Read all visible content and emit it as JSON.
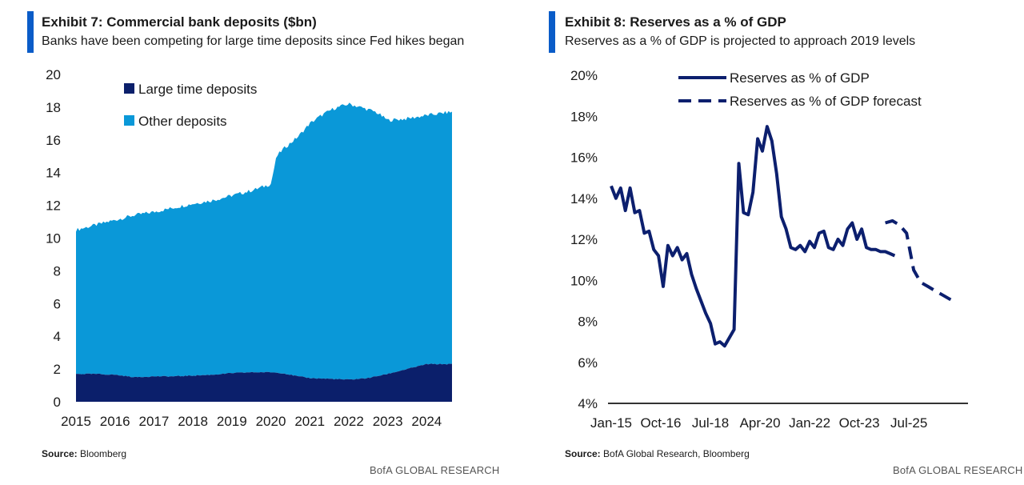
{
  "colors": {
    "accent": "#0a5cc8",
    "navy": "#0b1f6b",
    "light_blue": "#0a98d8",
    "line": "#0c1f6e"
  },
  "left": {
    "title": "Exhibit 7: Commercial bank deposits ($bn)",
    "subtitle": "Banks have been competing for large time deposits since Fed hikes began",
    "source_label": "Source:",
    "source_text": "Bloomberg",
    "brand": "BofA GLOBAL RESEARCH"
  },
  "right": {
    "title": "Exhibit 8: Reserves as a % of GDP",
    "subtitle": "Reserves as a % of GDP is projected to approach 2019 levels",
    "source_label": "Source:",
    "source_text": "BofA Global Research, Bloomberg",
    "brand": "BofA GLOBAL RESEARCH"
  },
  "chart_data": [
    {
      "type": "area",
      "stacked": true,
      "title": "Exhibit 7: Commercial bank deposits ($bn)",
      "ylim": [
        0,
        20
      ],
      "y_ticks": [
        "0",
        "2",
        "4",
        "6",
        "8",
        "10",
        "12",
        "14",
        "16",
        "18",
        "20"
      ],
      "x_ticks": [
        "2015",
        "2016",
        "2017",
        "2018",
        "2019",
        "2020",
        "2021",
        "2022",
        "2023",
        "2024"
      ],
      "legend_position": "top-left",
      "series": [
        {
          "name": "Large time deposits",
          "x": [
            2015.0,
            2015.5,
            2016.0,
            2016.5,
            2017.0,
            2017.5,
            2018.0,
            2018.5,
            2019.0,
            2019.5,
            2020.0,
            2020.3,
            2020.7,
            2021.0,
            2021.5,
            2022.0,
            2022.5,
            2023.0,
            2023.5,
            2024.0,
            2024.6
          ],
          "values": [
            1.7,
            1.7,
            1.65,
            1.5,
            1.55,
            1.55,
            1.6,
            1.65,
            1.75,
            1.8,
            1.8,
            1.75,
            1.55,
            1.45,
            1.4,
            1.35,
            1.45,
            1.7,
            2.0,
            2.3,
            2.3
          ]
        },
        {
          "name": "Other deposits",
          "x": [
            2015.0,
            2015.5,
            2016.0,
            2016.5,
            2017.0,
            2017.5,
            2018.0,
            2018.5,
            2019.0,
            2019.5,
            2020.0,
            2020.15,
            2020.3,
            2020.7,
            2021.0,
            2021.3,
            2021.6,
            2022.0,
            2022.3,
            2022.7,
            2023.0,
            2023.5,
            2024.0,
            2024.6
          ],
          "total": [
            10.5,
            10.8,
            11.1,
            11.4,
            11.6,
            11.85,
            12.1,
            12.3,
            12.6,
            12.9,
            13.3,
            15.0,
            15.4,
            16.2,
            17.0,
            17.5,
            17.9,
            18.2,
            18.0,
            17.7,
            17.2,
            17.3,
            17.5,
            17.7
          ]
        }
      ]
    },
    {
      "type": "line",
      "title": "Exhibit 8: Reserves as a % of GDP",
      "ylim": [
        4,
        20
      ],
      "y_ticks": [
        "4%",
        "6%",
        "8%",
        "10%",
        "12%",
        "14%",
        "16%",
        "18%",
        "20%"
      ],
      "x_ticks": [
        "Jan-15",
        "Oct-16",
        "Jul-18",
        "Apr-20",
        "Jan-22",
        "Oct-23",
        "Jul-25"
      ],
      "legend_position": "top",
      "series": [
        {
          "name": "Reserves as % of GDP",
          "style": "solid",
          "x": [
            "2015-01",
            "2015-03",
            "2015-05",
            "2015-07",
            "2015-09",
            "2015-11",
            "2016-01",
            "2016-03",
            "2016-05",
            "2016-07",
            "2016-09",
            "2016-11",
            "2017-01",
            "2017-03",
            "2017-05",
            "2017-07",
            "2017-09",
            "2017-11",
            "2018-01",
            "2018-03",
            "2018-05",
            "2018-07",
            "2018-09",
            "2018-11",
            "2019-01",
            "2019-03",
            "2019-05",
            "2019-07",
            "2019-09",
            "2019-11",
            "2020-01",
            "2020-03",
            "2020-05",
            "2020-07",
            "2020-09",
            "2020-11",
            "2021-01",
            "2021-03",
            "2021-05",
            "2021-07",
            "2021-09",
            "2021-11",
            "2022-01",
            "2022-03",
            "2022-05",
            "2022-07",
            "2022-09",
            "2022-11",
            "2023-01",
            "2023-03",
            "2023-05",
            "2023-07",
            "2023-09",
            "2023-11",
            "2024-01",
            "2024-03",
            "2024-05",
            "2024-07",
            "2024-09",
            "2024-11",
            "2025-01"
          ],
          "values": [
            14.6,
            14.0,
            14.5,
            13.4,
            14.5,
            13.3,
            13.4,
            12.3,
            12.4,
            11.5,
            11.2,
            9.7,
            11.7,
            11.2,
            11.6,
            11.0,
            11.3,
            10.3,
            9.6,
            9.0,
            8.4,
            7.9,
            6.9,
            7.0,
            6.8,
            7.2,
            7.6,
            15.7,
            13.3,
            13.2,
            14.3,
            16.9,
            16.3,
            17.5,
            16.8,
            15.2,
            13.1,
            12.5,
            11.6,
            11.5,
            11.7,
            11.4,
            11.9,
            11.6,
            12.3,
            12.4,
            11.6,
            11.5,
            12.0,
            11.7,
            12.5,
            12.8,
            12.0,
            12.5,
            11.6,
            11.5,
            11.5,
            11.4,
            11.4,
            11.3,
            11.2
          ]
        },
        {
          "name": "Reserves as % of GDP forecast",
          "style": "dashed",
          "x": [
            "2024-09",
            "2024-12",
            "2025-03",
            "2025-06",
            "2025-09",
            "2025-12",
            "2026-03",
            "2026-06",
            "2026-09",
            "2026-12",
            "2027-03"
          ],
          "values": [
            12.8,
            12.9,
            12.7,
            12.3,
            10.5,
            9.9,
            9.7,
            9.5,
            9.3,
            9.1,
            8.9
          ]
        }
      ]
    }
  ]
}
